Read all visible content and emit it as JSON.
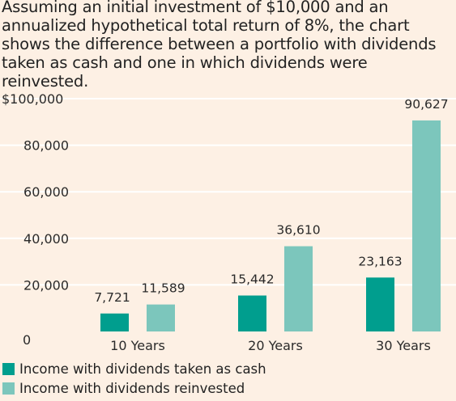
{
  "intro_text": "Assuming an initial investment of $10,000 and an annualized hypothetical total return of 8%, the chart shows the difference between a portfolio with dividends taken as cash and one in which dividends were reinvested.",
  "colors": {
    "background": "#fdf0e4",
    "cash": "#009e8e",
    "reinvested": "#7cc6bc",
    "gridline": "#ffffff"
  },
  "chart_data": {
    "type": "bar",
    "categories": [
      "10 Years",
      "20 Years",
      "30 Years"
    ],
    "series": [
      {
        "name": "Income with dividends taken as cash",
        "values": [
          7721,
          15442,
          23163
        ],
        "labels": [
          "7,721",
          "15,442",
          "23,163"
        ]
      },
      {
        "name": "Income with dividends reinvested",
        "values": [
          11589,
          36610,
          90627
        ],
        "labels": [
          "11,589",
          "36,610",
          "90,627"
        ]
      }
    ],
    "yticks": [
      {
        "value": 0,
        "label": "0"
      },
      {
        "value": 20000,
        "label": "20,000"
      },
      {
        "value": 40000,
        "label": "40,000"
      },
      {
        "value": 60000,
        "label": "60,000"
      },
      {
        "value": 80000,
        "label": "80,000"
      },
      {
        "value": 100000,
        "label": "$100,000"
      }
    ],
    "ylim": [
      0,
      100000
    ],
    "title": "",
    "xlabel": "",
    "ylabel": "",
    "grid": true,
    "legend_position": "bottom-left"
  }
}
